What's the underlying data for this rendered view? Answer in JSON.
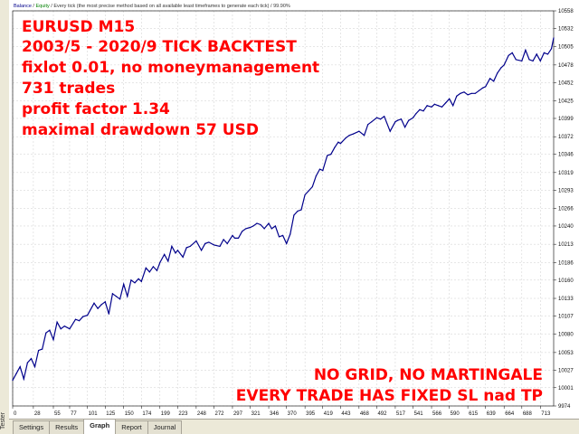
{
  "window": {
    "side_label": "Tester"
  },
  "header": {
    "balance": "Balance",
    "sep1": " / ",
    "equity": "Equity",
    "sep2": " / ",
    "model": "Every tick (the most precise method based on all available least timeframes to generate each tick)",
    "sep3": " / ",
    "quality": "99.90%"
  },
  "overlay": {
    "title": "EURUSD M15",
    "line2": "2003/5 - 2020/9 TICK BACKTEST",
    "line3": "fixlot 0.01, no moneymanagement",
    "line4": "731 trades",
    "line5": "profit factor 1.34",
    "line6": "maximal drawdown 57 USD",
    "note1": "NO GRID, NO MARTINGALE",
    "note2": "EVERY TRADE HAS FIXED SL nad TP"
  },
  "tabs": [
    "Settings",
    "Results",
    "Graph",
    "Report",
    "Journal"
  ],
  "active_tab": "Graph",
  "colors": {
    "balance_line": "#00008b",
    "overlay_text": "#ff0000",
    "grid": "#c0c0c0"
  },
  "chart_data": {
    "type": "line",
    "x_ticks": [
      "0",
      "28",
      "55",
      "77",
      "101",
      "125",
      "150",
      "174",
      "199",
      "223",
      "248",
      "272",
      "297",
      "321",
      "346",
      "370",
      "395",
      "419",
      "443",
      "468",
      "492",
      "517",
      "541",
      "566",
      "590",
      "615",
      "639",
      "664",
      "688",
      "713"
    ],
    "y_ticks": [
      "10558",
      "10532",
      "10505",
      "10478",
      "10452",
      "10425",
      "10399",
      "10372",
      "10346",
      "10319",
      "10293",
      "10266",
      "10240",
      "10213",
      "10186",
      "10160",
      "10133",
      "10107",
      "10080",
      "10053",
      "10027",
      "10001",
      "9974"
    ],
    "xlim": [
      0,
      731
    ],
    "ylim": [
      9974,
      10558
    ],
    "grid": true,
    "series": [
      {
        "name": "Balance",
        "x": [
          0,
          5,
          10,
          15,
          20,
          25,
          30,
          35,
          40,
          45,
          50,
          55,
          60,
          65,
          70,
          77,
          85,
          90,
          95,
          101,
          110,
          115,
          120,
          125,
          130,
          135,
          140,
          145,
          150,
          155,
          160,
          165,
          170,
          174,
          180,
          185,
          190,
          195,
          199,
          205,
          210,
          215,
          220,
          223,
          230,
          235,
          240,
          248,
          255,
          260,
          265,
          272,
          280,
          285,
          290,
          297,
          300,
          305,
          310,
          315,
          321,
          325,
          330,
          335,
          340,
          346,
          350,
          355,
          360,
          365,
          370,
          375,
          380,
          385,
          390,
          395,
          400,
          405,
          410,
          415,
          419,
          425,
          430,
          435,
          440,
          443,
          450,
          455,
          460,
          468,
          475,
          480,
          485,
          492,
          497,
          502,
          510,
          517,
          520,
          525,
          530,
          535,
          541,
          545,
          550,
          555,
          560,
          566,
          570,
          575,
          580,
          585,
          590,
          595,
          600,
          605,
          610,
          615,
          620,
          625,
          630,
          635,
          639,
          645,
          650,
          655,
          660,
          664,
          670,
          675,
          680,
          688,
          693,
          698,
          703,
          708,
          713,
          718,
          723,
          728,
          731
        ],
        "y": [
          10012,
          10022,
          10032,
          10014,
          10038,
          10044,
          10032,
          10056,
          10058,
          10082,
          10086,
          10072,
          10098,
          10088,
          10092,
          10088,
          10102,
          10100,
          10106,
          10108,
          10126,
          10118,
          10124,
          10128,
          10110,
          10140,
          10136,
          10132,
          10154,
          10136,
          10160,
          10156,
          10162,
          10158,
          10178,
          10172,
          10180,
          10174,
          10186,
          10198,
          10188,
          10210,
          10200,
          10204,
          10194,
          10208,
          10210,
          10218,
          10204,
          10214,
          10216,
          10212,
          10210,
          10220,
          10214,
          10226,
          10222,
          10222,
          10232,
          10236,
          10238,
          10240,
          10244,
          10242,
          10236,
          10244,
          10236,
          10240,
          10224,
          10226,
          10214,
          10228,
          10256,
          10262,
          10264,
          10286,
          10292,
          10298,
          10314,
          10324,
          10322,
          10344,
          10346,
          10356,
          10364,
          10362,
          10370,
          10374,
          10376,
          10380,
          10374,
          10390,
          10394,
          10400,
          10398,
          10402,
          10380,
          10394,
          10396,
          10398,
          10386,
          10396,
          10400,
          10406,
          10412,
          10410,
          10418,
          10416,
          10420,
          10418,
          10416,
          10422,
          10428,
          10418,
          10432,
          10436,
          10438,
          10434,
          10436,
          10436,
          10440,
          10444,
          10446,
          10458,
          10454,
          10466,
          10474,
          10478,
          10492,
          10496,
          10486,
          10484,
          10500,
          10486,
          10484,
          10494,
          10484,
          10496,
          10494,
          10502,
          10518
        ]
      }
    ]
  }
}
